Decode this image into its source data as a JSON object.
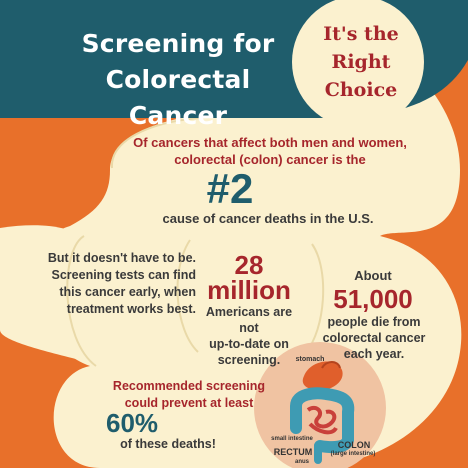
{
  "header": {
    "title_line1": "Screening for",
    "title_line2": "Colorectal Cancer",
    "badge_line1": "It's the",
    "badge_line2": "Right",
    "badge_line3": "Choice"
  },
  "intro": {
    "line1": "Of cancers that affect both men and women,",
    "line2": "colorectal (colon) cancer is the",
    "big_number": "#2",
    "line3": "cause of cancer deaths in the U.S."
  },
  "early_detection": {
    "line1": "But it doesn't have to be.",
    "line2": "Screening tests can find",
    "line3": "this cancer early, when",
    "line4": "treatment works best."
  },
  "not_screened": {
    "number": "28",
    "unit": "million",
    "line1": "Americans are not",
    "line2": "up-to-date on",
    "line3": "screening."
  },
  "deaths": {
    "prefix": "About",
    "number": "51,000",
    "line1": "people die from",
    "line2": "colorectal cancer",
    "line3": "each year."
  },
  "prevention": {
    "line1": "Recommended screening",
    "line2": "could prevent at least",
    "percent": "60%",
    "line3": "of these deaths!"
  },
  "anatomy": {
    "stomach": "stomach",
    "small_intestine": "small intestine",
    "rectum": "RECTUM",
    "anus": "anus",
    "colon": "COLON",
    "large_intestine": "(large intestine)"
  },
  "colors": {
    "background": "#e8702a",
    "cream": "#fbf1cf",
    "header_band": "#1f5d6c",
    "accent_red": "#a6262c",
    "colon_teal": "#3e9bb3"
  }
}
